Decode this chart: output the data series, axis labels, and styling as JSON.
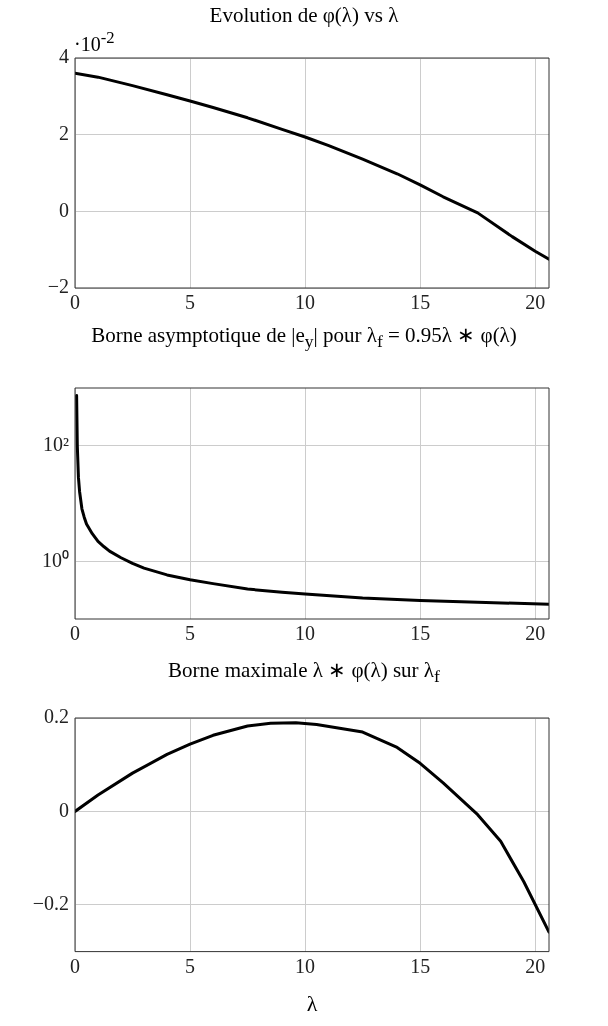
{
  "chart_data": [
    {
      "type": "line",
      "title": "Evolution de φ(λ) vs λ",
      "color": "#000000",
      "x": [
        0,
        1,
        2.5,
        4,
        5,
        6,
        7.5,
        9,
        10,
        11,
        12.5,
        14,
        15,
        16,
        17.5,
        19,
        20,
        20.6
      ],
      "values": [
        3.6,
        3.5,
        3.28,
        3.04,
        2.88,
        2.71,
        2.44,
        2.14,
        1.94,
        1.72,
        1.36,
        0.98,
        0.69,
        0.38,
        -0.04,
        -0.66,
        -1.04,
        -1.25
      ],
      "xlim": [
        0,
        20.6
      ],
      "xticks": [
        0,
        5,
        10,
        15,
        20
      ],
      "ylim": [
        -2,
        4
      ],
      "yticks": [
        {
          "value": -2,
          "label": "−2"
        },
        0,
        2,
        4
      ],
      "grid": true,
      "marker": "none",
      "line_style": "solid",
      "annotations": [
        "·10$^{-2}$"
      ]
    },
    {
      "type": "line",
      "title": "Borne asymptotique de |e$_{y}$| pour λ$_{f}$ = 0.95λ ∗ φ(λ)",
      "color": "#000000",
      "x": [
        0.07,
        0.1,
        0.15,
        0.2,
        0.3,
        0.4,
        0.5,
        0.75,
        1,
        1.25,
        1.5,
        2,
        2.5,
        3,
        4,
        5,
        6,
        7.5,
        9,
        10,
        12.5,
        15,
        17.5,
        20.6
      ],
      "values": [
        740,
        100,
        28,
        16,
        8.1,
        5.8,
        4.4,
        3,
        2.2,
        1.8,
        1.5,
        1.15,
        0.92,
        0.76,
        0.58,
        0.48,
        0.41,
        0.33,
        0.29,
        0.27,
        0.23,
        0.21,
        0.195,
        0.18
      ],
      "xlim": [
        0,
        20.6
      ],
      "xticks": [
        0,
        5,
        10,
        15,
        20
      ],
      "ylim": [
        0.1,
        1000
      ],
      "log": "y",
      "yticks": [
        {
          "value": 1,
          "label": "10⁰"
        },
        {
          "value": 100,
          "label": "10²"
        }
      ],
      "grid": true,
      "marker": "none",
      "line_style": "solid"
    },
    {
      "type": "line",
      "title": "Borne maximale λ ∗ φ(λ) sur λ$_{f}$",
      "xlabel": "λ",
      "color": "#000000",
      "x": [
        0,
        1,
        2.5,
        4,
        5,
        6,
        7.5,
        8.5,
        9.6,
        10.5,
        11.5,
        12.5,
        14,
        15,
        16,
        17.5,
        18.5,
        19.5,
        20.6
      ],
      "values": [
        0,
        0.035,
        0.082,
        0.122,
        0.144,
        0.163,
        0.183,
        0.189,
        0.19,
        0.186,
        0.178,
        0.17,
        0.137,
        0.103,
        0.061,
        -0.007,
        -0.064,
        -0.15,
        -0.258
      ],
      "xlim": [
        0,
        20.6
      ],
      "xticks": [
        0,
        5,
        10,
        15,
        20
      ],
      "ylim": [
        -0.3,
        0.2
      ],
      "yticks": [
        {
          "value": -0.2,
          "label": "−0.2"
        },
        0,
        0.2
      ],
      "grid": true,
      "marker": "none",
      "line_style": "solid"
    }
  ]
}
